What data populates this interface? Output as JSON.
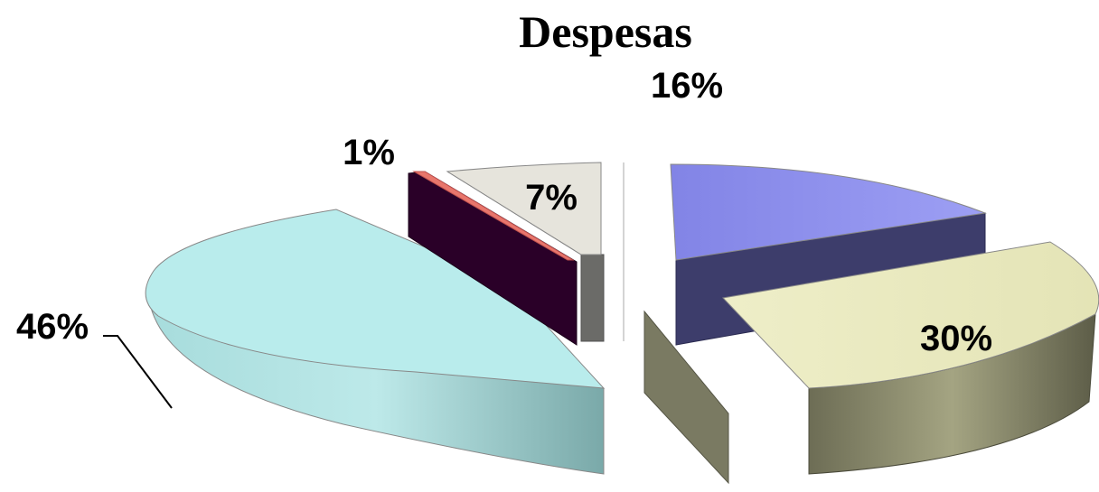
{
  "chart_data": {
    "type": "pie",
    "title": "Despesas",
    "slices": [
      {
        "label": "16%",
        "value": 16,
        "color": "#8b8ded"
      },
      {
        "label": "30%",
        "value": 30,
        "color": "#eeeec4"
      },
      {
        "label": "",
        "value": 0,
        "color": "#7a7a62"
      },
      {
        "label": "46%",
        "value": 46,
        "color": "#b9ecec"
      },
      {
        "label": "",
        "value": 0,
        "color": "#2a0028"
      },
      {
        "label": "1%",
        "value": 1,
        "color": "#e8766c"
      },
      {
        "label": "7%",
        "value": 7,
        "color": "#e6e4dc"
      }
    ]
  }
}
